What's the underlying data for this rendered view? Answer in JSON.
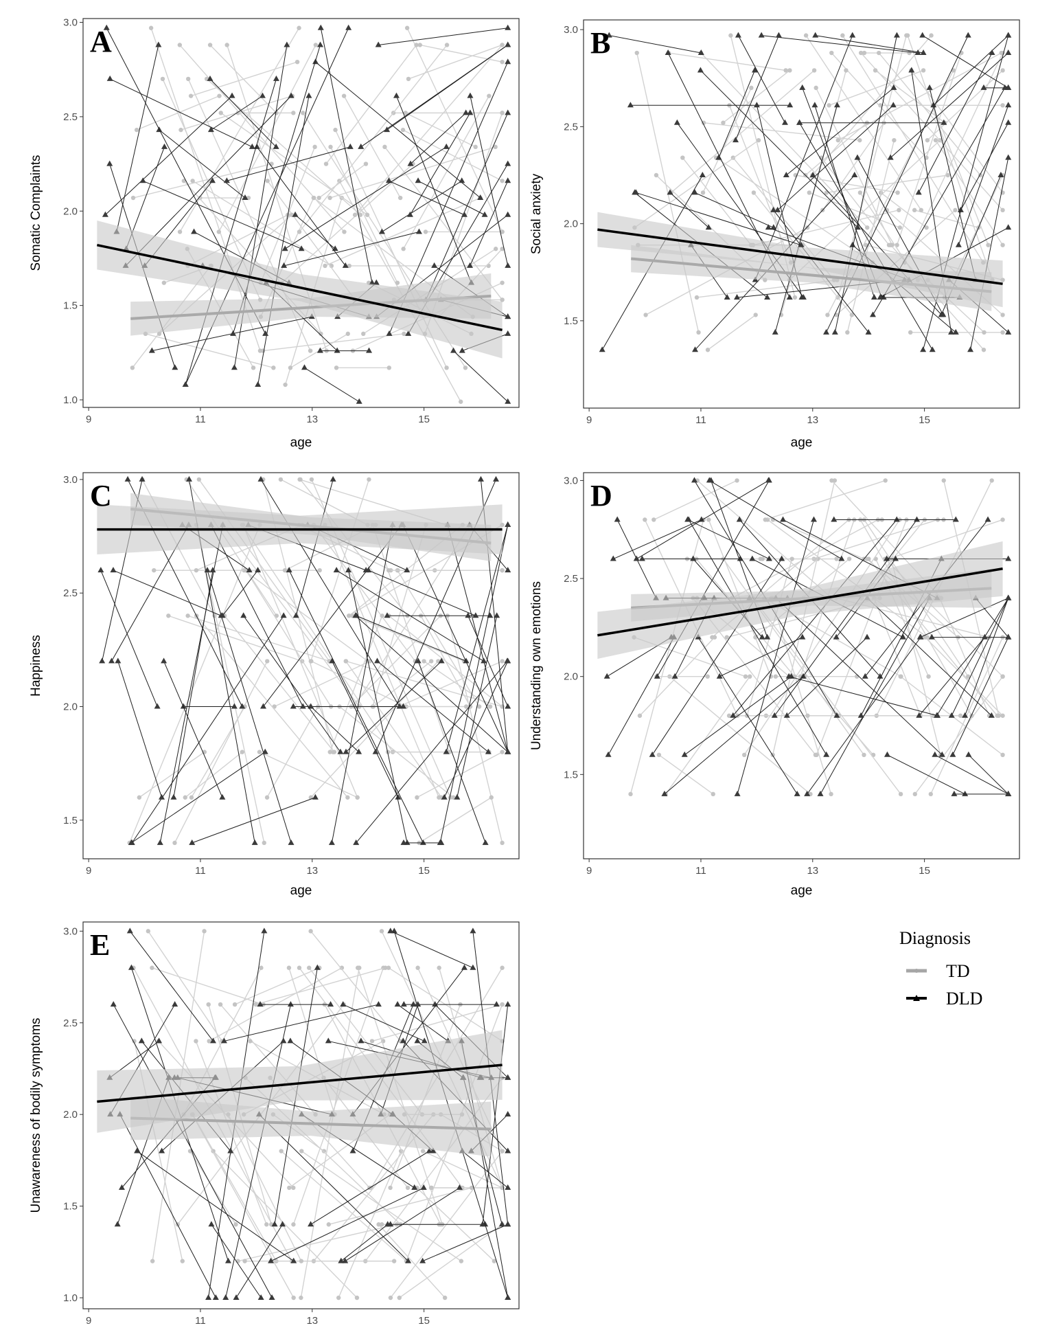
{
  "legend": {
    "title": "Diagnosis",
    "entries": [
      {
        "name": "TD",
        "color": "#a6a6a6",
        "marker": "circle"
      },
      {
        "name": "DLD",
        "color": "#000000",
        "marker": "triangle"
      }
    ]
  },
  "colors": {
    "td_line": "#a9a9a9",
    "dld_line": "#000000",
    "td_point": "#c4c4c4",
    "dld_point": "#3a3a3a",
    "ci_band": "#c8c8c8",
    "spaghetti_td": "#d2d2d2",
    "spaghetti_dld": "#1e1e1e"
  },
  "chart_data": [
    {
      "type": "scatter",
      "panel": "A",
      "xlabel": "age",
      "ylabel": "Somatic Complaints",
      "xlim": [
        8.9,
        16.7
      ],
      "ylim": [
        0.96,
        3.02
      ],
      "xticks": [
        "9",
        "11",
        "13",
        "15"
      ],
      "yticks": [
        "1.0",
        "1.5",
        "2.0",
        "2.5",
        "3.0"
      ],
      "grid": false,
      "series": [
        {
          "name": "TD",
          "fit_x": [
            9.75,
            16.2
          ],
          "fit_y": [
            1.43,
            1.55
          ],
          "ci": [
            0.09,
            0.12
          ]
        },
        {
          "name": "DLD",
          "fit_x": [
            9.15,
            16.4
          ],
          "fit_y": [
            1.82,
            1.37
          ],
          "ci": [
            0.13,
            0.15
          ]
        }
      ]
    },
    {
      "type": "scatter",
      "panel": "B",
      "xlabel": "age",
      "ylabel": "Social anxiety",
      "xlim": [
        8.9,
        16.7
      ],
      "ylim": [
        1.05,
        3.05
      ],
      "xticks": [
        "9",
        "11",
        "13",
        "15"
      ],
      "yticks": [
        "1.5",
        "2.0",
        "2.5",
        "3.0"
      ],
      "grid": false,
      "series": [
        {
          "name": "TD",
          "fit_x": [
            9.75,
            16.2
          ],
          "fit_y": [
            1.82,
            1.65
          ],
          "ci": [
            0.07,
            0.1
          ]
        },
        {
          "name": "DLD",
          "fit_x": [
            9.15,
            16.4
          ],
          "fit_y": [
            1.97,
            1.69
          ],
          "ci": [
            0.09,
            0.12
          ]
        }
      ]
    },
    {
      "type": "scatter",
      "panel": "C",
      "xlabel": "age",
      "ylabel": "Happiness",
      "xlim": [
        8.9,
        16.7
      ],
      "ylim": [
        1.33,
        3.03
      ],
      "xticks": [
        "9",
        "11",
        "13",
        "15"
      ],
      "yticks": [
        "1.5",
        "2.0",
        "2.5",
        "3.0"
      ],
      "grid": false,
      "series": [
        {
          "name": "TD",
          "fit_x": [
            9.75,
            16.2
          ],
          "fit_y": [
            2.87,
            2.72
          ],
          "ci": [
            0.07,
            0.08
          ]
        },
        {
          "name": "DLD",
          "fit_x": [
            9.15,
            16.4
          ],
          "fit_y": [
            2.78,
            2.78
          ],
          "ci": [
            0.11,
            0.11
          ]
        }
      ]
    },
    {
      "type": "scatter",
      "panel": "D",
      "xlabel": "age",
      "ylabel": "Understanding own emotions",
      "xlim": [
        8.9,
        16.7
      ],
      "ylim": [
        1.07,
        3.04
      ],
      "xticks": [
        "9",
        "11",
        "13",
        "15"
      ],
      "yticks": [
        "1.5",
        "2.0",
        "2.5",
        "3.0"
      ],
      "grid": false,
      "series": [
        {
          "name": "TD",
          "fit_x": [
            9.75,
            16.2
          ],
          "fit_y": [
            2.35,
            2.45
          ],
          "ci": [
            0.07,
            0.1
          ]
        },
        {
          "name": "DLD",
          "fit_x": [
            9.15,
            16.4
          ],
          "fit_y": [
            2.21,
            2.55
          ],
          "ci": [
            0.12,
            0.14
          ]
        }
      ]
    },
    {
      "type": "scatter",
      "panel": "E",
      "xlabel": "",
      "ylabel": "Unawareness of bodily symptoms",
      "xlim": [
        8.9,
        16.7
      ],
      "ylim": [
        0.94,
        3.05
      ],
      "xticks": [
        "9",
        "11",
        "13",
        "15"
      ],
      "yticks": [
        "1.0",
        "1.5",
        "2.0",
        "2.5",
        "3.0"
      ],
      "grid": false,
      "series": [
        {
          "name": "TD",
          "fit_x": [
            9.75,
            16.2
          ],
          "fit_y": [
            1.98,
            1.92
          ],
          "ci": [
            0.12,
            0.15
          ]
        },
        {
          "name": "DLD",
          "fit_x": [
            9.15,
            16.4
          ],
          "fit_y": [
            2.07,
            2.27
          ],
          "ci": [
            0.17,
            0.19
          ]
        }
      ]
    }
  ]
}
